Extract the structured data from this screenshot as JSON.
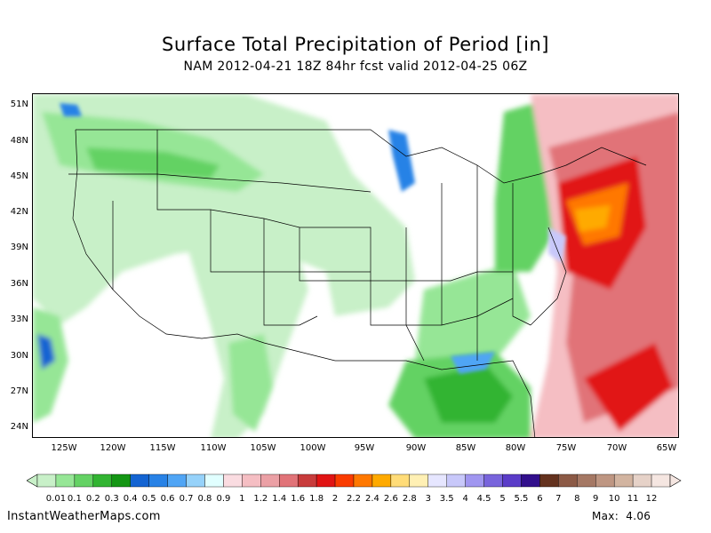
{
  "title": "Surface Total Precipitation of Period [in]",
  "subtitle": "NAM 2012-04-21 18Z 84hr fcst valid 2012-04-25 06Z",
  "lat_labels": [
    "51N",
    "48N",
    "45N",
    "42N",
    "39N",
    "36N",
    "33N",
    "30N",
    "27N",
    "24N"
  ],
  "lon_labels": [
    "125W",
    "120W",
    "115W",
    "110W",
    "105W",
    "100W",
    "95W",
    "90W",
    "85W",
    "80W",
    "75W",
    "70W",
    "65W"
  ],
  "legend": {
    "labels": [
      "0.01",
      "0.1",
      "0.2",
      "0.3",
      "0.4",
      "0.5",
      "0.6",
      "0.7",
      "0.8",
      "0.9",
      "1",
      "1.2",
      "1.4",
      "1.6",
      "1.8",
      "2",
      "2.2",
      "2.4",
      "2.6",
      "2.8",
      "3",
      "3.5",
      "4",
      "4.5",
      "5",
      "5.5",
      "6",
      "7",
      "8",
      "9",
      "10",
      "11",
      "12"
    ],
    "colors": [
      "#c8f0c8",
      "#96e696",
      "#64d264",
      "#32b432",
      "#149614",
      "#1464d2",
      "#2882e6",
      "#50a5f5",
      "#96d2fa",
      "#e1ffff",
      "#fadce1",
      "#f5bec3",
      "#eba0a5",
      "#e17378",
      "#c83c3c",
      "#e11414",
      "#fa3c00",
      "#ff7800",
      "#ffaa00",
      "#ffdc78",
      "#fff0b4",
      "#e6e6ff",
      "#c8c8fa",
      "#a096f0",
      "#7864dc",
      "#5a3cc8",
      "#320f8c",
      "#64321e",
      "#8c5a46",
      "#a57864",
      "#be9682",
      "#d2b4a0",
      "#e6d2c8",
      "#f5e6e1"
    ]
  },
  "footer": {
    "site": "InstantWeatherMaps.com",
    "max_label": "Max:",
    "max_value": "4.06"
  }
}
